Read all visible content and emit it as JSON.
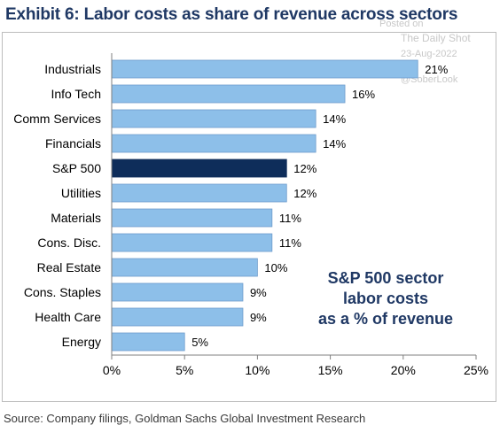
{
  "title": "Exhibit 6: Labor costs as share of revenue across sectors",
  "watermark": {
    "posted": "Posted on",
    "site": "The Daily Shot",
    "date": "23-Aug-2022",
    "handle": "@SoberLook"
  },
  "annotation": [
    "S&P 500 sector",
    "labor costs",
    "as a % of revenue"
  ],
  "source": "Source: Company filings, Goldman Sachs Global Investment Research",
  "colors": {
    "bar": "#8dbfe9",
    "highlight": "#0e2d5a",
    "title": "#1f3864",
    "bar_stroke": "#6e9ccc"
  },
  "chart_data": {
    "type": "bar",
    "orientation": "horizontal",
    "categories": [
      "Industrials",
      "Info Tech",
      "Comm Services",
      "Financials",
      "S&P 500",
      "Utilities",
      "Materials",
      "Cons. Disc.",
      "Real Estate",
      "Cons. Staples",
      "Health Care",
      "Energy"
    ],
    "values": [
      21,
      16,
      14,
      14,
      12,
      12,
      11,
      11,
      10,
      9,
      9,
      5
    ],
    "data_labels": [
      "21%",
      "16%",
      "14%",
      "14%",
      "12%",
      "12%",
      "11%",
      "11%",
      "10%",
      "9%",
      "9%",
      "5%"
    ],
    "highlight": "S&P 500",
    "xlim": [
      0,
      25
    ],
    "xticks": [
      0,
      5,
      10,
      15,
      20,
      25
    ],
    "xtick_labels": [
      "0%",
      "5%",
      "10%",
      "15%",
      "20%",
      "25%"
    ],
    "grid": false
  }
}
